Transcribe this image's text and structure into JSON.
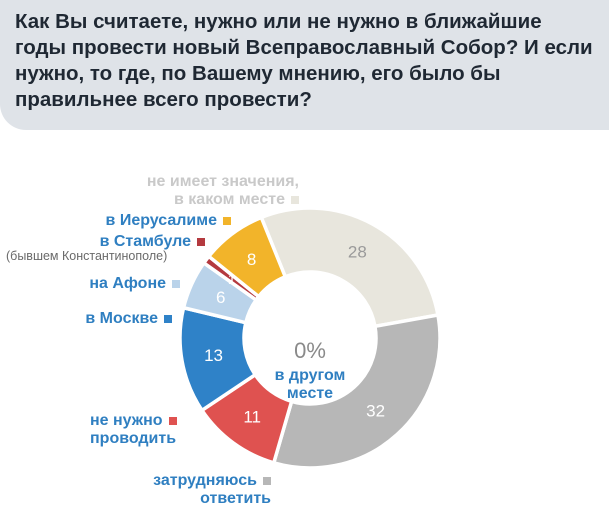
{
  "chart_data": {
    "type": "donut",
    "title": "Как Вы считаете, нужно или не нужно в ближайшие годы провести новый Всеправославный Собор? И если нужно, то где, по Вашему мнению, его было бы правильнее всего провести?",
    "unit": "%",
    "center": {
      "value": "0%",
      "label_line1": "в другом",
      "label_line2": "месте"
    },
    "series": [
      {
        "name": "не имеет значения, в каком месте",
        "value": 28,
        "color": "#e8e6dd",
        "text_color": "#9a9a9a"
      },
      {
        "name": "затрудняюсь ответить",
        "value": 32,
        "color": "#b7b7b7",
        "text_color": "#ffffff"
      },
      {
        "name": "не нужно проводить",
        "value": 11,
        "color": "#df5250",
        "text_color": "#ffffff"
      },
      {
        "name": "в Москве",
        "value": 13,
        "color": "#2f82c8",
        "text_color": "#ffffff"
      },
      {
        "name": "на Афоне",
        "value": 6,
        "color": "#bad3ea",
        "text_color": "#ffffff"
      },
      {
        "name": "в Стамбуле (бывшем Константинополе)",
        "value": 1,
        "color": "#b43a3f",
        "text_color": "#ffffff"
      },
      {
        "name": "в Иерусалиме",
        "value": 8,
        "color": "#f2b42a",
        "text_color": "#ffffff"
      }
    ]
  },
  "labels": {
    "no_matter_1": "не имеет значения,",
    "no_matter_2": "в каком месте",
    "jerusalem": "в Иерусалиме",
    "istanbul": "в Стамбуле",
    "istanbul_sub": "(бывшем Константинополе)",
    "athos": "на Афоне",
    "moscow": "в Москве",
    "not_needed_1": "не нужно",
    "not_needed_2": "проводить",
    "hard_1": "затрудняюсь",
    "hard_2": "ответить"
  },
  "colors": {
    "header_bg": "#dfe3e8",
    "title_text": "#1f2833",
    "label_text": "#2f7fc1",
    "label_text_dark": "#3a3a3a"
  }
}
